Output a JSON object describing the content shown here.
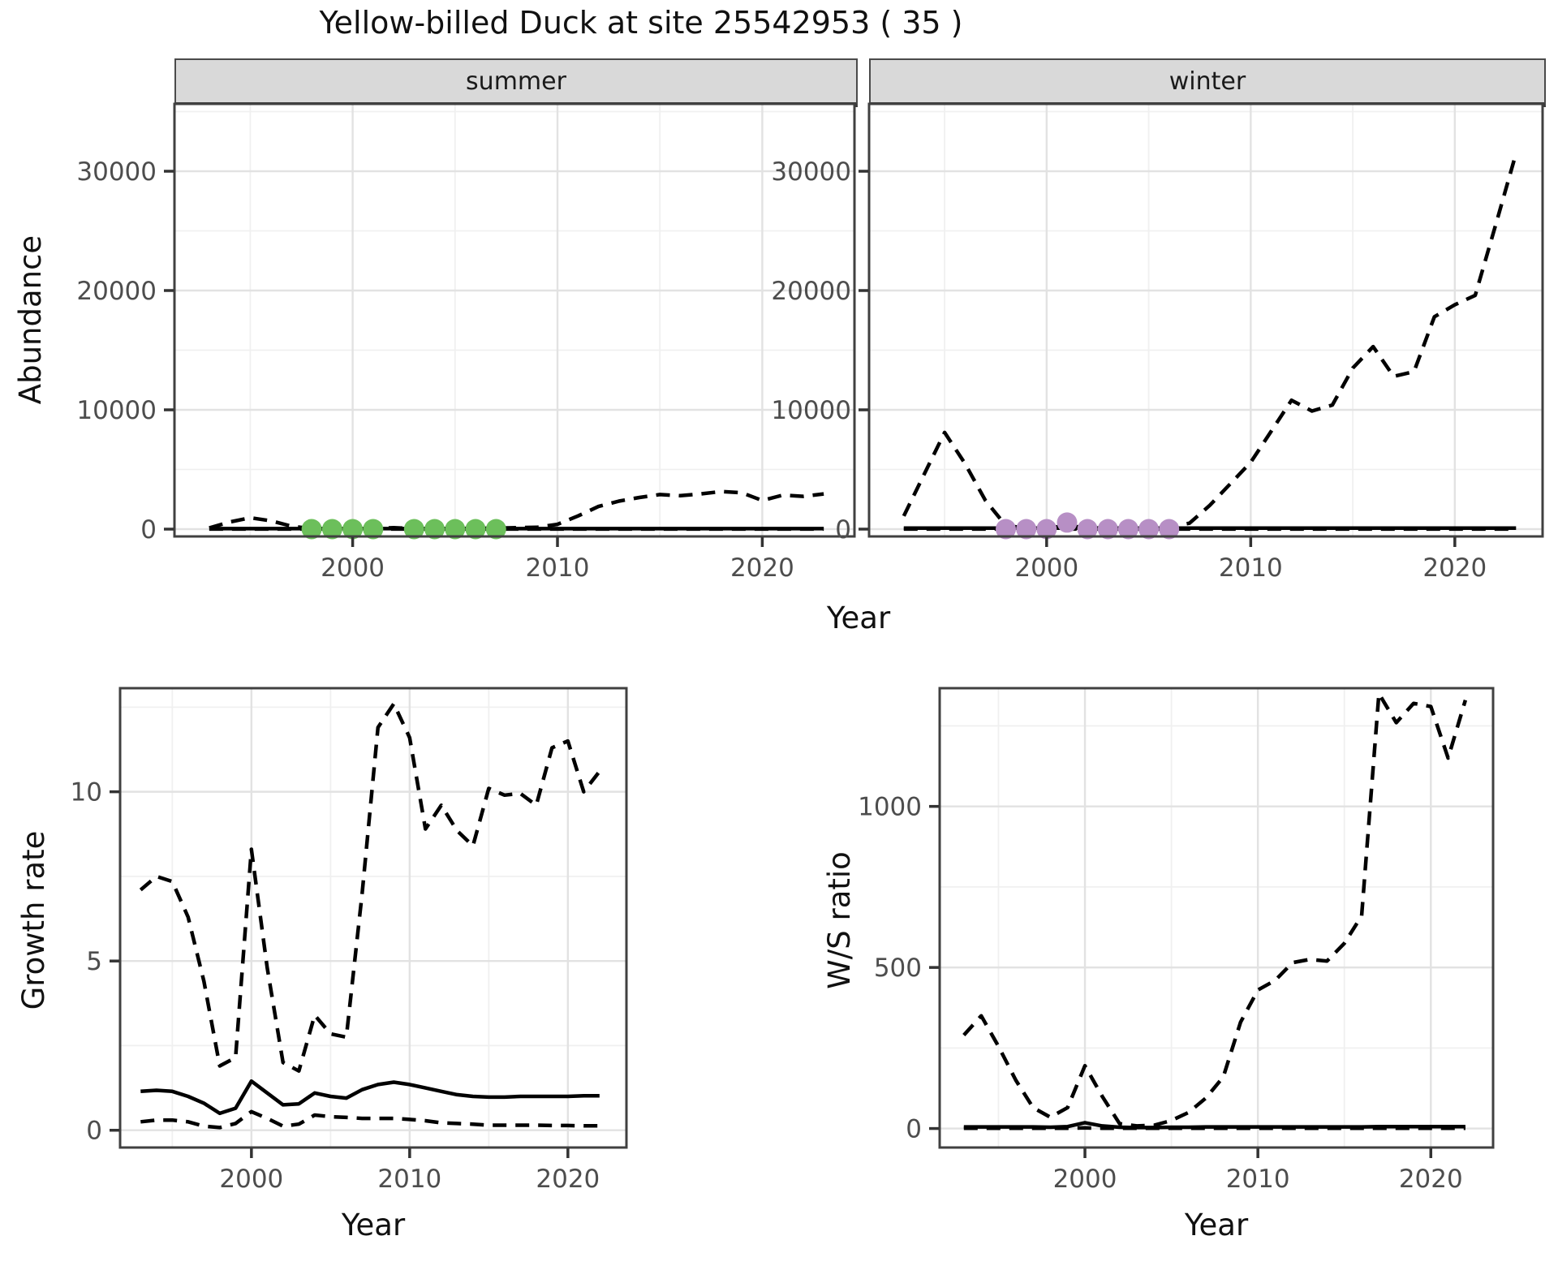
{
  "title": "Yellow-billed Duck at site 25542953 ( 35 )",
  "colors": {
    "summer_dot": "#6CBF5B",
    "winter_dot": "#B78FC5",
    "line": "#000000",
    "strip_bg": "#D9D9D9",
    "grid_major": "#E2E2E2",
    "grid_minor": "#F0F0F0",
    "tick_label": "#4D4D4D",
    "panel_border": "#404040"
  },
  "chart_data": [
    {
      "id": "abundance_summer",
      "type": "line",
      "facet_label": "summer",
      "xlabel": "Year",
      "ylabel": "Abundance",
      "x": [
        1993,
        1994,
        1995,
        1996,
        1997,
        1998,
        1999,
        2000,
        2001,
        2002,
        2003,
        2004,
        2005,
        2006,
        2007,
        2008,
        2009,
        2010,
        2011,
        2012,
        2013,
        2014,
        2015,
        2016,
        2017,
        2018,
        2019,
        2020,
        2021,
        2022,
        2023
      ],
      "series": [
        {
          "name": "upper_95ci",
          "style": "dashed",
          "values": [
            100,
            600,
            950,
            700,
            250,
            30,
            20,
            30,
            40,
            120,
            30,
            40,
            50,
            60,
            80,
            120,
            150,
            400,
            1100,
            1900,
            2350,
            2650,
            2900,
            2800,
            2950,
            3150,
            3050,
            2400,
            2850,
            2750,
            2950
          ]
        },
        {
          "name": "estimate",
          "style": "solid",
          "values": [
            40,
            40,
            40,
            40,
            40,
            40,
            40,
            40,
            40,
            40,
            40,
            40,
            40,
            40,
            40,
            40,
            40,
            40,
            40,
            40,
            40,
            40,
            40,
            40,
            40,
            40,
            40,
            40,
            40,
            40,
            40
          ]
        },
        {
          "name": "lower_95ci",
          "style": "dashed",
          "values": [
            5,
            5,
            5,
            5,
            5,
            5,
            5,
            5,
            5,
            5,
            5,
            5,
            5,
            5,
            5,
            5,
            5,
            5,
            5,
            5,
            5,
            5,
            5,
            5,
            5,
            5,
            5,
            5,
            5,
            5,
            5
          ]
        }
      ],
      "points": {
        "name": "observed_counts",
        "color_key": "summer_dot",
        "x": [
          1998,
          1999,
          2000,
          2001,
          2003,
          2004,
          2005,
          2006,
          2007
        ],
        "values": [
          0,
          0,
          0,
          0,
          0,
          0,
          0,
          0,
          0
        ]
      },
      "xticks": [
        2000,
        2010,
        2020
      ],
      "yticks": [
        0,
        10000,
        20000,
        30000
      ],
      "xlim": [
        1991.3,
        2024.5
      ],
      "ylim": [
        -612,
        35646
      ]
    },
    {
      "id": "abundance_winter",
      "type": "line",
      "facet_label": "winter",
      "xlabel": "Year",
      "ylabel": "Abundance",
      "x": [
        1993,
        1994,
        1995,
        1996,
        1997,
        1998,
        1999,
        2000,
        2001,
        2002,
        2003,
        2004,
        2005,
        2006,
        2007,
        2008,
        2009,
        2010,
        2011,
        2012,
        2013,
        2014,
        2015,
        2016,
        2017,
        2018,
        2019,
        2020,
        2021,
        2022,
        2023
      ],
      "series": [
        {
          "name": "upper_95ci",
          "style": "dashed",
          "values": [
            1100,
            4600,
            8100,
            5500,
            2400,
            300,
            80,
            80,
            300,
            100,
            80,
            80,
            100,
            200,
            500,
            2000,
            3800,
            5600,
            8200,
            10800,
            9900,
            10400,
            13500,
            15300,
            12800,
            13200,
            17800,
            18800,
            19600,
            25500,
            31500
          ]
        },
        {
          "name": "estimate",
          "style": "solid",
          "values": [
            80,
            80,
            80,
            80,
            80,
            80,
            80,
            80,
            80,
            80,
            80,
            80,
            80,
            80,
            80,
            80,
            80,
            80,
            80,
            80,
            80,
            80,
            80,
            80,
            80,
            80,
            80,
            80,
            80,
            80,
            80
          ]
        },
        {
          "name": "lower_95ci",
          "style": "dashed",
          "values": [
            10,
            10,
            10,
            10,
            10,
            10,
            10,
            10,
            10,
            10,
            10,
            10,
            10,
            10,
            10,
            10,
            10,
            10,
            10,
            10,
            10,
            10,
            10,
            10,
            10,
            10,
            10,
            10,
            10,
            10,
            10
          ]
        }
      ],
      "points": {
        "name": "observed_counts",
        "color_key": "winter_dot",
        "x": [
          1998,
          1999,
          2000,
          2001,
          2002,
          2003,
          2004,
          2005,
          2006
        ],
        "values": [
          0,
          0,
          0,
          550,
          0,
          0,
          0,
          0,
          0
        ]
      },
      "xticks": [
        2000,
        2010,
        2020
      ],
      "yticks": [
        0,
        10000,
        20000,
        30000
      ],
      "xlim": [
        1991.3,
        2024.3
      ],
      "ylim": [
        -612,
        35646
      ]
    },
    {
      "id": "growth_rate",
      "type": "line",
      "facet_label": "",
      "xlabel": "Year",
      "ylabel": "Growth rate",
      "x": [
        1993,
        1994,
        1995,
        1996,
        1997,
        1998,
        1999,
        2000,
        2001,
        2002,
        2003,
        2004,
        2005,
        2006,
        2007,
        2008,
        2009,
        2010,
        2011,
        2012,
        2013,
        2014,
        2015,
        2016,
        2017,
        2018,
        2019,
        2020,
        2021,
        2022
      ],
      "series": [
        {
          "name": "upper_95ci",
          "style": "dashed",
          "values": [
            7.1,
            7.5,
            7.35,
            6.3,
            4.4,
            1.9,
            2.15,
            8.3,
            4.8,
            2.0,
            1.75,
            3.4,
            2.85,
            2.75,
            7.0,
            11.9,
            12.6,
            11.6,
            8.9,
            9.6,
            8.85,
            8.4,
            10.1,
            9.9,
            9.95,
            9.6,
            11.3,
            11.5,
            10.0,
            10.6
          ]
        },
        {
          "name": "estimate",
          "style": "solid",
          "values": [
            1.15,
            1.18,
            1.15,
            1.0,
            0.8,
            0.5,
            0.65,
            1.45,
            1.1,
            0.75,
            0.78,
            1.1,
            1.0,
            0.95,
            1.2,
            1.35,
            1.42,
            1.35,
            1.25,
            1.15,
            1.05,
            1.0,
            0.98,
            0.98,
            1.0,
            1.0,
            1.0,
            1.0,
            1.02,
            1.02
          ]
        },
        {
          "name": "lower_95ci",
          "style": "dashed",
          "values": [
            0.25,
            0.3,
            0.3,
            0.25,
            0.12,
            0.08,
            0.2,
            0.55,
            0.35,
            0.12,
            0.18,
            0.45,
            0.4,
            0.38,
            0.35,
            0.35,
            0.35,
            0.32,
            0.28,
            0.22,
            0.2,
            0.18,
            0.15,
            0.15,
            0.15,
            0.15,
            0.14,
            0.14,
            0.13,
            0.13
          ]
        }
      ],
      "points": null,
      "xticks": [
        2000,
        2010,
        2020
      ],
      "yticks": [
        0,
        5,
        10
      ],
      "xlim": [
        1991.7,
        2023.7
      ],
      "ylim": [
        -0.51,
        13.06
      ]
    },
    {
      "id": "ws_ratio",
      "type": "line",
      "facet_label": "",
      "xlabel": "Year",
      "ylabel": "W/S ratio",
      "x": [
        1993,
        1994,
        1995,
        1996,
        1997,
        1998,
        1999,
        2000,
        2001,
        2002,
        2003,
        2004,
        2005,
        2006,
        2007,
        2008,
        2009,
        2010,
        2011,
        2012,
        2013,
        2014,
        2015,
        2016,
        2017,
        2018,
        2019,
        2020,
        2021,
        2022
      ],
      "series": [
        {
          "name": "upper_95ci",
          "style": "dashed",
          "values": [
            290,
            350,
            255,
            150,
            65,
            35,
            65,
            195,
            100,
            15,
            8,
            10,
            25,
            50,
            95,
            160,
            330,
            430,
            460,
            515,
            525,
            520,
            575,
            660,
            1350,
            1260,
            1320,
            1310,
            1150,
            1330
          ]
        },
        {
          "name": "estimate",
          "style": "solid",
          "values": [
            5,
            5,
            5,
            5,
            5,
            4,
            6,
            18,
            8,
            4,
            3,
            3,
            4,
            4,
            5,
            5,
            5,
            5,
            5,
            5,
            5,
            5,
            5,
            5,
            6,
            6,
            6,
            6,
            6,
            6
          ]
        },
        {
          "name": "lower_95ci",
          "style": "dashed",
          "values": [
            1,
            1,
            1,
            1,
            1,
            1,
            1,
            2,
            1,
            1,
            1,
            1,
            1,
            1,
            1,
            1,
            1,
            1,
            1,
            1,
            1,
            1,
            1,
            1,
            1,
            1,
            1,
            1,
            1,
            1
          ]
        }
      ],
      "points": null,
      "xticks": [
        2000,
        2010,
        2020
      ],
      "yticks": [
        0,
        500,
        1000
      ],
      "xlim": [
        1991.6,
        2023.6
      ],
      "ylim": [
        -59,
        1367
      ]
    }
  ]
}
